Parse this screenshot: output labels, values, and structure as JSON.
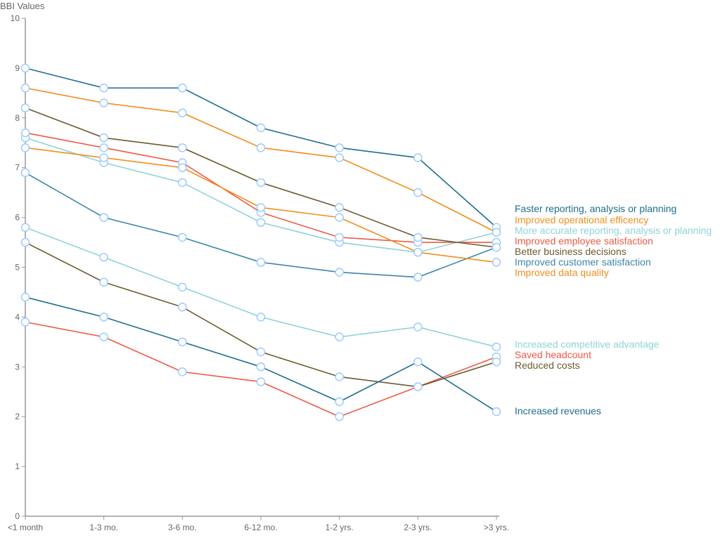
{
  "chart_data": {
    "type": "line",
    "ylabel": "BBI Values",
    "xlabel": "",
    "ylim": [
      0,
      10
    ],
    "yticks": [
      0,
      1,
      2,
      3,
      4,
      5,
      6,
      7,
      8,
      9,
      10
    ],
    "categories": [
      "<1 month",
      "1-3 mo.",
      "3-6 mo.",
      "6-12 mo.",
      "1-2 yrs.",
      "2-3 yrs.",
      ">3 yrs."
    ],
    "grid": false,
    "legend": "right, labels at line ends",
    "marker_color": "#9ecbff",
    "series": [
      {
        "name": "Faster reporting, analysis or planning",
        "color": "#1f6e8c",
        "values": [
          9.0,
          8.6,
          8.6,
          7.8,
          7.4,
          7.2,
          5.8
        ]
      },
      {
        "name": "Improved operational efficency",
        "color": "#f28e1c",
        "values": [
          8.6,
          8.3,
          8.1,
          7.4,
          7.2,
          6.5,
          5.7
        ]
      },
      {
        "name": "More accurate reporting, analysis or planning",
        "color": "#8fd3d8",
        "values": [
          7.6,
          7.1,
          6.7,
          5.9,
          5.5,
          5.3,
          5.7
        ]
      },
      {
        "name": "Improved employee satisfaction",
        "color": "#ee5a45",
        "values": [
          7.7,
          7.4,
          7.1,
          6.1,
          5.6,
          5.5,
          5.5
        ]
      },
      {
        "name": "Better business decisions",
        "color": "#6b5a2e",
        "values": [
          8.2,
          7.6,
          7.4,
          6.7,
          6.2,
          5.6,
          5.4
        ]
      },
      {
        "name": "Improved customer satisfaction",
        "color": "#3a87a8",
        "values": [
          6.9,
          6.0,
          5.6,
          5.1,
          4.9,
          4.8,
          5.4
        ]
      },
      {
        "name": "Improved data quality",
        "color": "#f28e1c",
        "values": [
          7.4,
          7.2,
          7.0,
          6.2,
          6.0,
          5.3,
          5.1
        ]
      },
      {
        "name": "Increased competitive advantage",
        "color": "#8fd3d8",
        "values": [
          5.8,
          5.2,
          4.6,
          4.0,
          3.6,
          3.8,
          3.4
        ]
      },
      {
        "name": "Saved headcount",
        "color": "#ee5a45",
        "values": [
          3.9,
          3.6,
          2.9,
          2.7,
          2.0,
          2.6,
          3.2
        ]
      },
      {
        "name": "Reduced costs",
        "color": "#6b5a2e",
        "values": [
          5.5,
          4.7,
          4.2,
          3.3,
          2.8,
          2.6,
          3.1
        ]
      },
      {
        "name": "Increased revenues",
        "color": "#1f6e8c",
        "values": [
          4.4,
          4.0,
          3.5,
          3.0,
          2.3,
          3.1,
          2.1
        ]
      }
    ]
  }
}
